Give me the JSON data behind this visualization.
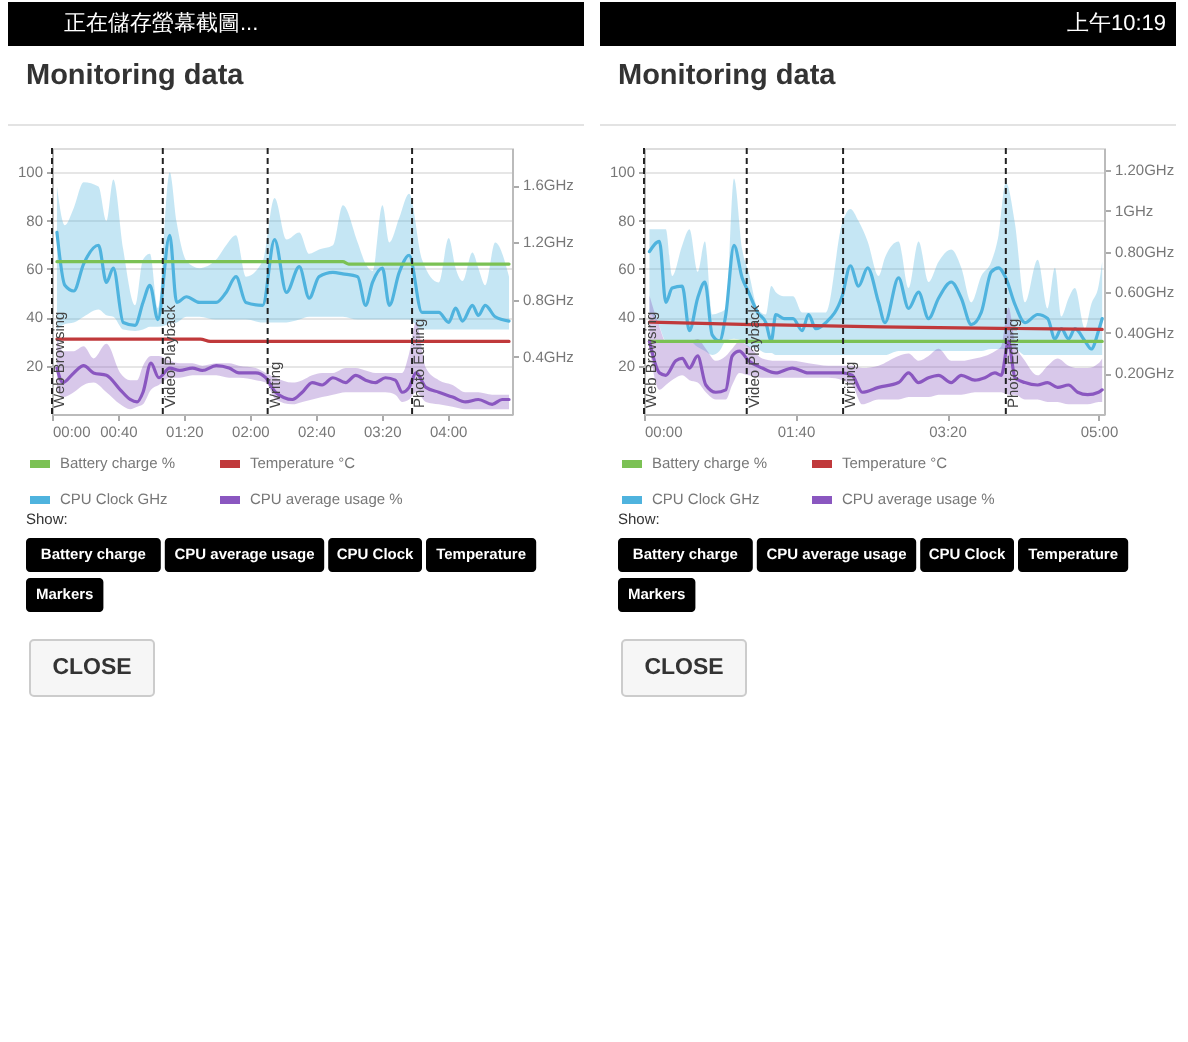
{
  "chart_data": [
    {
      "type": "line",
      "title": "Monitoring data",
      "xlim": [
        0,
        4.65
      ],
      "xticks": [
        {
          "value": 0,
          "label": "00:00"
        },
        {
          "value": 0.6667,
          "label": "00:40"
        },
        {
          "value": 1.3333,
          "label": "01:20"
        },
        {
          "value": 2,
          "label": "02:00"
        },
        {
          "value": 2.6667,
          "label": "02:40"
        },
        {
          "value": 3.3333,
          "label": "03:20"
        },
        {
          "value": 4,
          "label": "04:00"
        }
      ],
      "ylim": [
        0,
        110
      ],
      "yticks": [
        20,
        40,
        60,
        80,
        100
      ],
      "y2lim": [
        0,
        1.86
      ],
      "y2ticks": [
        {
          "value": 0.4,
          "label": "0.4GHz"
        },
        {
          "value": 0.8,
          "label": "0.8GHz"
        },
        {
          "value": 1.2,
          "label": "1.2GHz"
        },
        {
          "value": 1.6,
          "label": "1.6GHz"
        }
      ],
      "grid": "y",
      "legend": "bottom",
      "series": [
        {
          "name": "Battery charge %",
          "color": "#7bc154",
          "x": [
            0.05,
            2.94,
            3.0,
            4.62
          ],
          "values": [
            63,
            63,
            62,
            62
          ]
        },
        {
          "name": "Temperature °C",
          "color": "#c0393b",
          "x": [
            0.05,
            1.5,
            1.6,
            4.62
          ],
          "values": [
            31,
            31,
            30,
            30
          ]
        },
        {
          "name": "CPU Clock GHz",
          "color": "#4fb3de",
          "axis": "y2",
          "x": [
            0.05,
            0.13,
            0.22,
            0.32,
            0.47,
            0.55,
            0.62,
            0.72,
            0.84,
            0.92,
            0.99,
            1.07,
            1.19,
            1.26,
            1.36,
            1.49,
            1.66,
            1.76,
            1.86,
            1.96,
            2.13,
            2.25,
            2.37,
            2.5,
            2.6,
            2.7,
            2.84,
            2.94,
            3.09,
            3.17,
            3.24,
            3.34,
            3.41,
            3.51,
            3.61,
            3.74,
            3.91,
            4.01,
            4.08,
            4.15,
            4.25,
            4.31,
            4.38,
            4.48,
            4.62
          ],
          "values": [
            1.27,
            0.9,
            0.86,
            1.05,
            1.18,
            0.92,
            1.02,
            0.64,
            0.62,
            0.78,
            0.9,
            0.66,
            1.25,
            0.78,
            0.82,
            0.78,
            0.78,
            0.85,
            0.96,
            0.78,
            0.76,
            1.22,
            0.85,
            1.03,
            0.81,
            0.96,
            0.99,
            0.98,
            0.96,
            0.76,
            0.92,
            1.02,
            0.76,
            0.99,
            1.11,
            0.71,
            0.71,
            0.64,
            0.74,
            0.65,
            0.76,
            0.69,
            0.76,
            0.68,
            0.65
          ],
          "lower": [
            0.59,
            0.63,
            0.64,
            0.68,
            0.73,
            0.69,
            0.68,
            0.59,
            0.58,
            0.59,
            0.61,
            0.61,
            0.63,
            0.64,
            0.68,
            0.68,
            0.66,
            0.66,
            0.66,
            0.66,
            0.64,
            0.64,
            0.64,
            0.66,
            0.68,
            0.68,
            0.68,
            0.68,
            0.66,
            0.66,
            0.66,
            0.66,
            0.66,
            0.66,
            0.66,
            0.59,
            0.59,
            0.59,
            0.59,
            0.59,
            0.59,
            0.59,
            0.59,
            0.59,
            0.59
          ],
          "upper": [
            1.59,
            1.32,
            1.44,
            1.62,
            1.59,
            1.35,
            1.64,
            1.15,
            0.76,
            1.08,
            1.12,
            0.74,
            1.69,
            1.34,
            1.07,
            1.02,
            1.08,
            1.18,
            1.25,
            0.96,
            1.07,
            1.51,
            1.22,
            1.27,
            1.12,
            1.15,
            1.18,
            1.46,
            1.2,
            1.05,
            1.0,
            1.46,
            1.2,
            1.37,
            1.54,
            1.08,
            0.92,
            1.23,
            1.02,
            0.93,
            1.13,
            1.02,
            0.9,
            1.2,
            0.96
          ]
        },
        {
          "name": "CPU average usage %",
          "color": "#8a57c0",
          "x": [
            0.05,
            0.11,
            0.22,
            0.32,
            0.42,
            0.55,
            0.69,
            0.79,
            0.86,
            0.92,
            1.0,
            1.08,
            1.19,
            1.29,
            1.42,
            1.52,
            1.66,
            1.79,
            1.89,
            2.06,
            2.16,
            2.26,
            2.43,
            2.53,
            2.63,
            2.73,
            2.84,
            2.97,
            3.07,
            3.17,
            3.27,
            3.37,
            3.47,
            3.54,
            3.61,
            3.68,
            3.78,
            3.91,
            4.05,
            4.18,
            4.31,
            4.45,
            4.55,
            4.62
          ],
          "values": [
            19,
            13,
            17,
            20,
            17,
            16,
            10,
            6,
            5,
            9,
            21,
            15,
            19,
            18,
            19,
            18,
            20,
            19,
            17,
            17,
            15,
            9,
            6,
            9,
            13,
            12,
            15,
            13,
            16,
            14,
            13,
            15,
            14,
            9,
            11,
            17,
            11,
            9,
            7,
            5,
            6,
            4,
            6,
            6
          ],
          "lower": [
            10,
            7,
            9,
            12,
            13,
            9,
            4,
            2,
            3,
            4,
            10,
            12,
            15,
            15,
            16,
            16,
            16,
            15,
            15,
            14,
            13,
            6,
            4,
            5,
            6,
            7,
            8,
            9,
            9,
            9,
            9,
            9,
            8,
            5,
            6,
            9,
            5,
            4,
            3,
            2,
            2,
            2,
            2,
            2
          ],
          "upper": [
            32,
            26,
            26,
            28,
            23,
            29,
            17,
            14,
            14,
            20,
            24,
            24,
            22,
            21,
            21,
            20,
            21,
            21,
            20,
            19,
            17,
            15,
            13,
            14,
            16,
            17,
            17,
            19,
            19,
            18,
            17,
            17,
            17,
            17,
            25,
            38,
            19,
            14,
            12,
            9,
            9,
            8,
            8,
            8
          ]
        }
      ],
      "ref_lines": [
        {
          "axis": "x",
          "value": 0,
          "label": "Web Browsing",
          "color": "#222222",
          "line_style": "dashed"
        },
        {
          "axis": "x",
          "value": 1.12,
          "label": "Video Playback",
          "color": "#222222",
          "line_style": "dashed"
        },
        {
          "axis": "x",
          "value": 2.18,
          "label": "Writing",
          "color": "#222222",
          "line_style": "dashed"
        },
        {
          "axis": "x",
          "value": 3.64,
          "label": "Photo Editing",
          "color": "#222222",
          "line_style": "dashed"
        }
      ],
      "annotations": [
        "正在儲存螢幕截圖...",
        "Show:",
        "Battery charge",
        "CPU average usage",
        "CPU Clock",
        "Temperature",
        "Markers",
        "CLOSE"
      ]
    },
    {
      "type": "line",
      "title": "Monitoring data",
      "xlim": [
        0,
        5.06
      ],
      "xticks": [
        {
          "value": 0,
          "label": "00:00"
        },
        {
          "value": 1.6667,
          "label": "01:40"
        },
        {
          "value": 3.3333,
          "label": "03:20"
        },
        {
          "value": 5,
          "label": "05:00"
        }
      ],
      "ylim": [
        0,
        110
      ],
      "yticks": [
        20,
        40,
        60,
        80,
        100
      ],
      "y2lim": [
        0,
        1.31
      ],
      "y2ticks": [
        {
          "value": 0.2,
          "label": "0.20GHz"
        },
        {
          "value": 0.4,
          "label": "0.40GHz"
        },
        {
          "value": 0.6,
          "label": "0.60GHz"
        },
        {
          "value": 0.8,
          "label": "0.80GHz"
        },
        {
          "value": 1,
          "label": "1GHz"
        },
        {
          "value": 1.2,
          "label": "1.20GHz"
        }
      ],
      "grid": "y",
      "legend": "bottom",
      "series": [
        {
          "name": "Battery charge %",
          "color": "#7bc154",
          "x": [
            0.06,
            5.04
          ],
          "values": [
            30,
            30
          ]
        },
        {
          "name": "Temperature °C",
          "color": "#c0393b",
          "x": [
            0.06,
            1.2,
            2.6,
            5.04
          ],
          "values": [
            38,
            37,
            36,
            35
          ]
        },
        {
          "name": "CPU Clock GHz",
          "color": "#4fb3de",
          "axis": "y2",
          "x": [
            0.06,
            0.17,
            0.24,
            0.31,
            0.42,
            0.5,
            0.59,
            0.67,
            0.75,
            0.83,
            0.9,
            0.99,
            1.08,
            1.15,
            1.25,
            1.34,
            1.4,
            1.45,
            1.54,
            1.64,
            1.74,
            1.81,
            1.89,
            2.0,
            2.18,
            2.27,
            2.36,
            2.46,
            2.58,
            2.65,
            2.8,
            2.91,
            3.02,
            3.13,
            3.24,
            3.38,
            3.49,
            3.6,
            3.71,
            3.82,
            3.9,
            3.98,
            4.08,
            4.19,
            4.33,
            4.44,
            4.52,
            4.59,
            4.67,
            4.74,
            4.85,
            4.92,
            5.0,
            5.04
          ],
          "values": [
            0.8,
            0.85,
            0.55,
            0.62,
            0.63,
            0.41,
            0.57,
            0.65,
            0.39,
            0.36,
            0.49,
            0.83,
            0.67,
            0.6,
            0.5,
            0.45,
            0.36,
            0.49,
            0.47,
            0.47,
            0.41,
            0.49,
            0.42,
            0.45,
            0.58,
            0.73,
            0.63,
            0.72,
            0.55,
            0.45,
            0.67,
            0.52,
            0.6,
            0.47,
            0.57,
            0.65,
            0.57,
            0.44,
            0.5,
            0.7,
            0.72,
            0.67,
            0.54,
            0.45,
            0.49,
            0.47,
            0.37,
            0.42,
            0.37,
            0.42,
            0.36,
            0.32,
            0.41,
            0.47
          ],
          "lower": [
            0.5,
            0.43,
            0.36,
            0.36,
            0.36,
            0.36,
            0.33,
            0.31,
            0.29,
            0.31,
            0.36,
            0.37,
            0.36,
            0.33,
            0.32,
            0.3,
            0.3,
            0.29,
            0.29,
            0.29,
            0.29,
            0.29,
            0.29,
            0.29,
            0.29,
            0.29,
            0.29,
            0.29,
            0.29,
            0.29,
            0.31,
            0.31,
            0.31,
            0.31,
            0.31,
            0.31,
            0.31,
            0.31,
            0.31,
            0.32,
            0.32,
            0.32,
            0.32,
            0.29,
            0.29,
            0.29,
            0.29,
            0.29,
            0.29,
            0.29,
            0.29,
            0.29,
            0.29,
            0.29
          ],
          "upper": [
            0.91,
            0.91,
            0.91,
            0.68,
            0.83,
            0.91,
            0.7,
            0.85,
            0.49,
            0.5,
            0.52,
            1.16,
            0.81,
            0.7,
            0.52,
            0.49,
            0.63,
            0.6,
            0.58,
            0.58,
            0.5,
            0.5,
            0.5,
            0.5,
            0.94,
            1.01,
            0.95,
            0.85,
            0.68,
            0.77,
            0.85,
            0.62,
            0.85,
            0.65,
            0.75,
            0.81,
            0.72,
            0.55,
            0.68,
            0.75,
            0.88,
            1.14,
            0.94,
            0.55,
            0.76,
            0.52,
            0.72,
            0.48,
            0.57,
            0.62,
            0.42,
            0.54,
            0.63,
            0.75
          ]
        },
        {
          "name": "CPU average usage %",
          "color": "#8a57c0",
          "x": [
            0.06,
            0.17,
            0.24,
            0.35,
            0.42,
            0.5,
            0.59,
            0.68,
            0.79,
            0.9,
            0.97,
            1.05,
            1.15,
            1.3,
            1.45,
            1.63,
            1.81,
            2.03,
            2.18,
            2.29,
            2.4,
            2.58,
            2.8,
            2.91,
            3.02,
            3.13,
            3.24,
            3.38,
            3.49,
            3.64,
            3.75,
            3.86,
            3.93,
            4.01,
            4.08,
            4.19,
            4.33,
            4.44,
            4.55,
            4.67,
            4.77,
            4.88,
            5.0,
            5.04
          ],
          "values": [
            30,
            17,
            16,
            22,
            23,
            19,
            24,
            12,
            9,
            10,
            24,
            26,
            22,
            19,
            17,
            19,
            17,
            17,
            17,
            16,
            9,
            11,
            13,
            17,
            13,
            15,
            16,
            13,
            16,
            14,
            15,
            17,
            16,
            30,
            15,
            13,
            12,
            13,
            11,
            12,
            9,
            8,
            9,
            10
          ],
          "lower": [
            27,
            10,
            12,
            15,
            16,
            14,
            13,
            9,
            6,
            6,
            12,
            17,
            16,
            15,
            15,
            15,
            15,
            15,
            14,
            12,
            4,
            6,
            6,
            7,
            7,
            7,
            8,
            8,
            8,
            9,
            9,
            9,
            9,
            8,
            8,
            6,
            6,
            5,
            5,
            4,
            4,
            4,
            5,
            5
          ],
          "upper": [
            49,
            36,
            30,
            30,
            30,
            30,
            31,
            27,
            22,
            24,
            27,
            30,
            28,
            23,
            22,
            22,
            21,
            20,
            20,
            20,
            19,
            20,
            24,
            25,
            22,
            24,
            27,
            22,
            22,
            23,
            24,
            26,
            28,
            44,
            30,
            22,
            16,
            20,
            23,
            20,
            19,
            19,
            21,
            23
          ]
        }
      ],
      "ref_lines": [
        {
          "axis": "x",
          "value": 0,
          "label": "Web Browsing",
          "color": "#222222",
          "line_style": "dashed"
        },
        {
          "axis": "x",
          "value": 1.13,
          "label": "Video Playback",
          "color": "#222222",
          "line_style": "dashed"
        },
        {
          "axis": "x",
          "value": 2.19,
          "label": "Writing",
          "color": "#222222",
          "line_style": "dashed"
        },
        {
          "axis": "x",
          "value": 3.98,
          "label": "Photo Editing",
          "color": "#222222",
          "line_style": "dashed"
        }
      ],
      "annotations": [
        "上午10:19",
        "Show:",
        "Battery charge",
        "CPU average usage",
        "CPU Clock",
        "Temperature",
        "Markers",
        "CLOSE"
      ]
    }
  ]
}
